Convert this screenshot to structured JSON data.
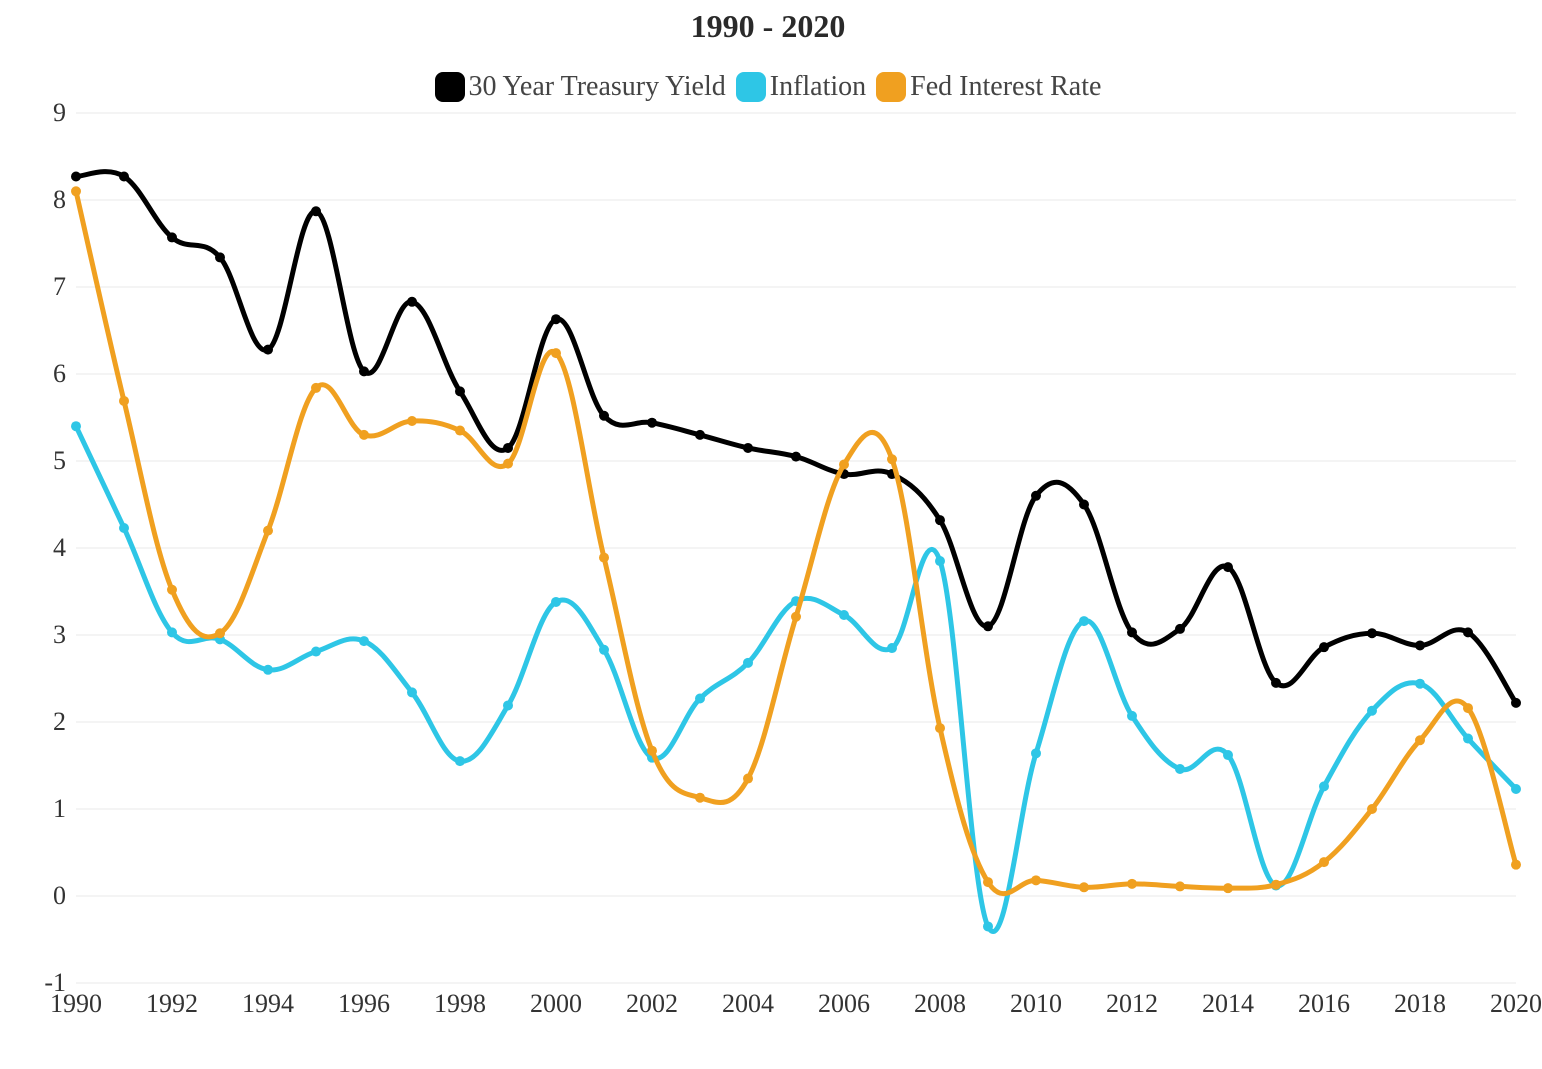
{
  "chart": {
    "type": "line",
    "title": "1990 - 2020",
    "title_fontsize": 32,
    "title_color": "#2a2a2a",
    "background_color": "#ffffff",
    "grid_color": "#e8e8e8",
    "axis_label_color": "#333333",
    "axis_label_fontsize": 26,
    "legend_fontsize": 28,
    "legend_color": "#444444",
    "x": {
      "min": 1990,
      "max": 2020,
      "ticks": [
        1990,
        1992,
        1994,
        1996,
        1998,
        2000,
        2002,
        2004,
        2006,
        2008,
        2010,
        2012,
        2014,
        2016,
        2018,
        2020
      ]
    },
    "y": {
      "min": -1,
      "max": 9,
      "ticks": [
        -1,
        0,
        1,
        2,
        3,
        4,
        5,
        6,
        7,
        8,
        9
      ]
    },
    "years": [
      1990,
      1991,
      1992,
      1993,
      1994,
      1995,
      1996,
      1997,
      1998,
      1999,
      2000,
      2001,
      2002,
      2003,
      2004,
      2005,
      2006,
      2007,
      2008,
      2009,
      2010,
      2011,
      2012,
      2013,
      2014,
      2015,
      2016,
      2017,
      2018,
      2019,
      2020
    ],
    "series": [
      {
        "key": "treasury",
        "label": "30 Year Treasury Yield",
        "color": "#000000",
        "line_width": 5,
        "marker_radius": 5,
        "values": [
          8.27,
          8.27,
          7.57,
          7.34,
          6.28,
          7.87,
          6.03,
          6.83,
          5.8,
          5.15,
          6.63,
          5.52,
          5.44,
          5.3,
          5.15,
          5.05,
          4.85,
          4.85,
          4.32,
          3.1,
          4.6,
          4.5,
          3.03,
          3.07,
          3.78,
          2.45,
          2.86,
          3.02,
          2.88,
          3.03,
          2.22
        ]
      },
      {
        "key": "inflation",
        "label": "Inflation",
        "color": "#2ec6e6",
        "line_width": 5,
        "marker_radius": 5,
        "values": [
          5.4,
          4.23,
          3.03,
          2.95,
          2.6,
          2.81,
          2.93,
          2.34,
          1.55,
          2.19,
          3.38,
          2.83,
          1.59,
          2.27,
          2.68,
          3.39,
          3.23,
          2.85,
          3.85,
          -0.35,
          1.64,
          3.16,
          2.07,
          1.46,
          1.62,
          0.12,
          1.26,
          2.13,
          2.44,
          1.81,
          1.23
        ]
      },
      {
        "key": "fed",
        "label": "Fed Interest Rate",
        "color": "#f0a020",
        "line_width": 5,
        "marker_radius": 5,
        "values": [
          8.1,
          5.69,
          3.52,
          3.02,
          4.2,
          5.84,
          5.3,
          5.46,
          5.35,
          4.97,
          6.24,
          3.89,
          1.67,
          1.13,
          1.35,
          3.21,
          4.96,
          5.02,
          1.93,
          0.16,
          0.18,
          0.1,
          0.14,
          0.11,
          0.09,
          0.13,
          0.39,
          1.0,
          1.79,
          2.16,
          0.36
        ]
      }
    ],
    "swatch_radius": 8
  }
}
